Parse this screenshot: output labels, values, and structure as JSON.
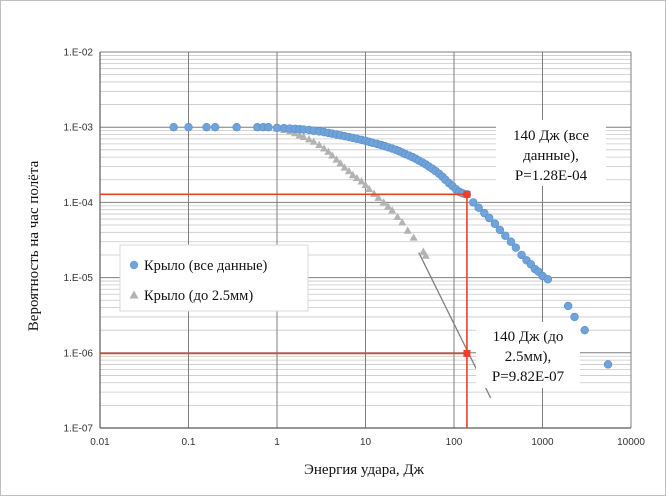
{
  "chart_data": {
    "type": "scatter",
    "x_scale": "log",
    "y_scale": "log",
    "xlim": [
      0.01,
      10000
    ],
    "ylim": [
      1e-07,
      0.01
    ],
    "xlabel": "Энергия удара, Дж",
    "ylabel": "Вероятность на час полёта",
    "x_ticks": [
      {
        "value": 0.01,
        "label": "0.01"
      },
      {
        "value": 0.1,
        "label": "0.1"
      },
      {
        "value": 1,
        "label": "1"
      },
      {
        "value": 10,
        "label": "10"
      },
      {
        "value": 100,
        "label": "100"
      },
      {
        "value": 1000,
        "label": "1000"
      },
      {
        "value": 10000,
        "label": "10000"
      }
    ],
    "y_ticks": [
      {
        "value": 0.01,
        "label": "1.E-02"
      },
      {
        "value": 0.001,
        "label": "1.E-03"
      },
      {
        "value": 0.0001,
        "label": "1.E-04"
      },
      {
        "value": 1e-05,
        "label": "1.E-05"
      },
      {
        "value": 1e-06,
        "label": "1.E-06"
      },
      {
        "value": 1e-07,
        "label": "1.E-07"
      }
    ],
    "grid": true,
    "legend": {
      "position": "left-middle"
    },
    "series": [
      {
        "name": "Крыло (все данные)",
        "marker": "circle",
        "color": "#6fa3d9",
        "points": [
          [
            0.068,
            0.001
          ],
          [
            0.1,
            0.001
          ],
          [
            0.16,
            0.001
          ],
          [
            0.2,
            0.001
          ],
          [
            0.35,
            0.001
          ],
          [
            0.6,
            0.001
          ],
          [
            0.7,
            0.001
          ],
          [
            0.8,
            0.001
          ],
          [
            1.0,
            0.00098
          ],
          [
            1.2,
            0.00097
          ],
          [
            1.4,
            0.00096
          ],
          [
            1.6,
            0.00095
          ],
          [
            1.8,
            0.00094
          ],
          [
            2.0,
            0.00093
          ],
          [
            2.3,
            0.00092
          ],
          [
            2.6,
            0.0009
          ],
          [
            3.0,
            0.00088
          ],
          [
            3.4,
            0.00086
          ],
          [
            3.8,
            0.00084
          ],
          [
            4.2,
            0.00082
          ],
          [
            4.7,
            0.0008
          ],
          [
            5.2,
            0.00078
          ],
          [
            5.8,
            0.00076
          ],
          [
            6.5,
            0.00074
          ],
          [
            7.2,
            0.00072
          ],
          [
            8.0,
            0.0007
          ],
          [
            9.0,
            0.00068
          ],
          [
            10,
            0.00066
          ],
          [
            11,
            0.00064
          ],
          [
            12,
            0.00062
          ],
          [
            13.5,
            0.0006
          ],
          [
            15,
            0.00058
          ],
          [
            16.5,
            0.00056
          ],
          [
            18,
            0.00054
          ],
          [
            20,
            0.00052
          ],
          [
            22,
            0.0005
          ],
          [
            24,
            0.00048
          ],
          [
            26,
            0.00046
          ],
          [
            28,
            0.00044
          ],
          [
            31,
            0.00042
          ],
          [
            34,
            0.0004
          ],
          [
            37,
            0.00038
          ],
          [
            40,
            0.00036
          ],
          [
            44,
            0.00034
          ],
          [
            48,
            0.00032
          ],
          [
            52,
            0.0003
          ],
          [
            57,
            0.00028
          ],
          [
            62,
            0.00026
          ],
          [
            68,
            0.00024
          ],
          [
            74,
            0.00022
          ],
          [
            80,
            0.0002
          ],
          [
            88,
            0.00018
          ],
          [
            96,
            0.000165
          ],
          [
            105,
            0.00015
          ],
          [
            115,
            0.000138
          ],
          [
            125,
            0.000132
          ],
          [
            140,
            0.000128
          ],
          [
            165,
            0.0001
          ],
          [
            190,
            8.5e-05
          ],
          [
            220,
            7.2e-05
          ],
          [
            250,
            6.2e-05
          ],
          [
            290,
            5.2e-05
          ],
          [
            330,
            4.3e-05
          ],
          [
            380,
            3.6e-05
          ],
          [
            440,
            3e-05
          ],
          [
            500,
            2.5e-05
          ],
          [
            580,
            2e-05
          ],
          [
            660,
            1.7e-05
          ],
          [
            740,
            1.5e-05
          ],
          [
            820,
            1.3e-05
          ],
          [
            900,
            1.2e-05
          ],
          [
            1000,
            1.05e-05
          ],
          [
            1150,
            9.5e-06
          ],
          [
            1950,
            4.2e-06
          ],
          [
            2300,
            3e-06
          ],
          [
            3000,
            2e-06
          ],
          [
            5500,
            7e-07
          ]
        ]
      },
      {
        "name": "Крыло (до 2.5мм)",
        "marker": "triangle",
        "color": "#b3b3b3",
        "points": [
          [
            0.6,
            0.001
          ],
          [
            0.8,
            0.00098
          ],
          [
            1.0,
            0.00096
          ],
          [
            1.2,
            0.00092
          ],
          [
            1.4,
            0.00088
          ],
          [
            1.6,
            0.00083
          ],
          [
            1.8,
            0.00078
          ],
          [
            2.0,
            0.00074
          ],
          [
            2.3,
            0.00069
          ],
          [
            2.6,
            0.00064
          ],
          [
            3.0,
            0.00058
          ],
          [
            3.4,
            0.00052
          ],
          [
            3.8,
            0.00047
          ],
          [
            4.2,
            0.00042
          ],
          [
            4.7,
            0.00037
          ],
          [
            5.2,
            0.00033
          ],
          [
            5.8,
            0.00029
          ],
          [
            6.5,
            0.00026
          ],
          [
            7.2,
            0.00023
          ],
          [
            8.0,
            0.00021
          ],
          [
            9.0,
            0.00019
          ],
          [
            10,
            0.00017
          ],
          [
            11,
            0.00015
          ],
          [
            12.5,
            0.00013
          ],
          [
            14,
            0.000115
          ],
          [
            16,
            0.0001
          ],
          [
            18,
            8.8e-05
          ],
          [
            20,
            7.8e-05
          ],
          [
            23,
            6.4e-05
          ],
          [
            26,
            5.4e-05
          ],
          [
            30,
            4.2e-05
          ],
          [
            35,
            3.4e-05
          ],
          [
            45,
            2.2e-05
          ],
          [
            48,
            1.95e-05
          ]
        ]
      }
    ],
    "trendline": {
      "color": "#808080",
      "points": [
        [
          40,
          2.15e-05
        ],
        [
          260,
          2.5e-07
        ]
      ]
    },
    "reference_lines": {
      "color": "#e8412c",
      "lines": [
        {
          "type": "horizontal",
          "y": 0.000128,
          "x_from": 0.01,
          "x_to": 140
        },
        {
          "type": "horizontal",
          "y": 9.82e-07,
          "x_from": 0.01,
          "x_to": 140
        },
        {
          "type": "vertical",
          "x": 140,
          "y_from": 1e-07,
          "y_to": 0.000128
        }
      ],
      "markers": [
        [
          140,
          0.000128
        ],
        [
          140,
          9.82e-07
        ]
      ]
    },
    "annotations": [
      {
        "lines": [
          "140 Дж (все",
          "данные),",
          "P=1.28E-04"
        ]
      },
      {
        "lines": [
          "140 Дж (до",
          "2.5мм),",
          "P=9.82E-07"
        ]
      }
    ]
  }
}
